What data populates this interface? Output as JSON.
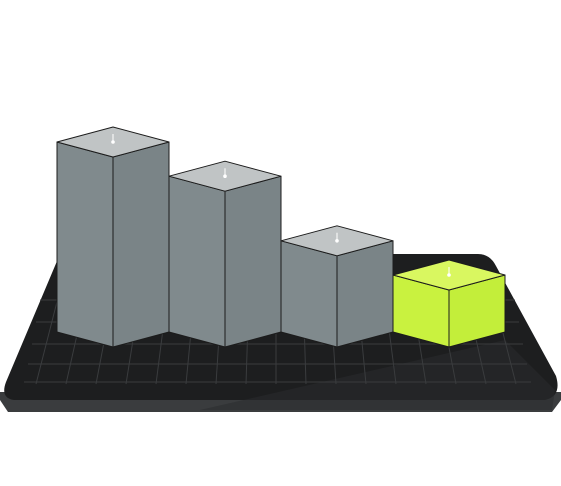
{
  "chart_data": {
    "type": "bar",
    "style": "3d-isometric",
    "categories": [
      "",
      "",
      "",
      ""
    ],
    "values": [
      100,
      82,
      48,
      30
    ],
    "ylim": [
      0,
      100
    ],
    "grid": true,
    "legend": "none",
    "highlight_index": 3
  },
  "colors": {
    "bar_front": "#808a8d",
    "bar_side": "#7a8487",
    "bar_top": "#c0c4c5",
    "highlight_front": "#c9f23f",
    "highlight_side": "#c3ee3a",
    "highlight_top": "#d9f760",
    "base_top": "#1d1e1f",
    "base_edge": "#3a3c3e",
    "grid_line": "#3a3c3e",
    "outline": "#1c1c1c",
    "marker": "#ffffff"
  }
}
